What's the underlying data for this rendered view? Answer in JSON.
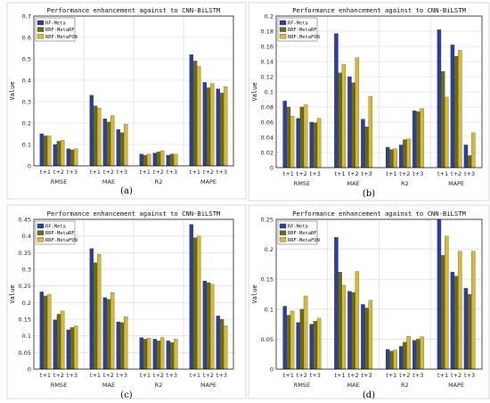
{
  "colors": {
    "RF-Meta": "#2b3fa0",
    "RRF-MetaRF": "#6b6b14",
    "RRF-MetaFON": "#d7b934",
    "grid": "#d6d6d6",
    "axis": "#000000"
  },
  "chart_data": [
    {
      "panel_label": "(a)",
      "type": "bar",
      "title": "Performance enhancement against to CNN-BiLSTM",
      "ylabel": "Value",
      "ylim": [
        0,
        0.7
      ],
      "yticks": [
        "0",
        "0.1",
        "0.2",
        "0.3",
        "0.4",
        "0.5",
        "0.6",
        "0.7"
      ],
      "legend": [
        "RF-Meta",
        "RRF-MetaRF",
        "RRF-MetaFON"
      ],
      "legend_position": "top-left",
      "groups": [
        "RMSE",
        "MAE",
        "R2",
        "MAPE"
      ],
      "subgroups": [
        "t+1",
        "t+2",
        "t+3"
      ],
      "series": [
        {
          "name": "RF-Meta",
          "values": [
            [
              0.15,
              0.1,
              0.08
            ],
            [
              0.33,
              0.22,
              0.17
            ],
            [
              0.055,
              0.06,
              0.05
            ],
            [
              0.52,
              0.39,
              0.36
            ]
          ]
        },
        {
          "name": "RRF-MetaRF",
          "values": [
            [
              0.14,
              0.115,
              0.075
            ],
            [
              0.28,
              0.205,
              0.155
            ],
            [
              0.05,
              0.065,
              0.055
            ],
            [
              0.49,
              0.365,
              0.34
            ]
          ]
        },
        {
          "name": "RRF-MetaFON",
          "values": [
            [
              0.14,
              0.12,
              0.08
            ],
            [
              0.27,
              0.235,
              0.195
            ],
            [
              0.055,
              0.07,
              0.055
            ],
            [
              0.465,
              0.385,
              0.37
            ]
          ]
        }
      ]
    },
    {
      "panel_label": "(b)",
      "type": "bar",
      "title": "Performance enhancement against to CNN-BiLSTM",
      "ylabel": "Value",
      "ylim": [
        0,
        0.2
      ],
      "yticks": [
        "0",
        "0.02",
        "0.04",
        "0.06",
        "0.08",
        "0.1",
        "0.12",
        "0.14",
        "0.16",
        "0.18",
        "0.2"
      ],
      "legend": [
        "RF-Meta",
        "RRF-MetaRF",
        "RRF-MetaFON"
      ],
      "legend_position": "top-left",
      "groups": [
        "RMSE",
        "MAE",
        "R2",
        "MAPE"
      ],
      "subgroups": [
        "t+1",
        "t+2",
        "t+3"
      ],
      "series": [
        {
          "name": "RF-Meta",
          "values": [
            [
              0.088,
              0.065,
              0.06
            ],
            [
              0.177,
              0.12,
              0.064
            ],
            [
              0.027,
              0.03,
              0.075
            ],
            [
              0.182,
              0.162,
              0.03
            ]
          ]
        },
        {
          "name": "RRF-MetaRF",
          "values": [
            [
              0.08,
              0.08,
              0.059
            ],
            [
              0.125,
              0.112,
              0.054
            ],
            [
              0.024,
              0.037,
              0.074
            ],
            [
              0.127,
              0.147,
              0.016
            ]
          ]
        },
        {
          "name": "RRF-MetaFON",
          "values": [
            [
              0.068,
              0.083,
              0.065
            ],
            [
              0.136,
              0.145,
              0.094
            ],
            [
              0.025,
              0.038,
              0.078
            ],
            [
              0.093,
              0.155,
              0.046
            ]
          ]
        }
      ]
    },
    {
      "panel_label": "(c)",
      "type": "bar",
      "title": "Performance enhancement against to CNN-BiLSTM",
      "ylabel": "Value",
      "ylim": [
        0,
        0.45
      ],
      "yticks": [
        "0",
        "0.05",
        "0.1",
        "0.15",
        "0.2",
        "0.25",
        "0.3",
        "0.35",
        "0.4",
        "0.45"
      ],
      "legend": [
        "RF-Meta",
        "RRF-MetaRF",
        "RRF-MetaFON"
      ],
      "legend_position": "top-left",
      "groups": [
        "RMSE",
        "MAE",
        "R2",
        "MAPE"
      ],
      "subgroups": [
        "t+1",
        "t+2",
        "t+3"
      ],
      "series": [
        {
          "name": "RF-Meta",
          "values": [
            [
              0.232,
              0.148,
              0.118
            ],
            [
              0.362,
              0.215,
              0.142
            ],
            [
              0.095,
              0.09,
              0.085
            ],
            [
              0.435,
              0.265,
              0.16
            ]
          ]
        },
        {
          "name": "RRF-MetaRF",
          "values": [
            [
              0.22,
              0.165,
              0.125
            ],
            [
              0.32,
              0.21,
              0.14
            ],
            [
              0.09,
              0.085,
              0.08
            ],
            [
              0.395,
              0.26,
              0.15
            ]
          ]
        },
        {
          "name": "RRF-MetaFON",
          "values": [
            [
              0.225,
              0.175,
              0.13
            ],
            [
              0.345,
              0.23,
              0.158
            ],
            [
              0.093,
              0.095,
              0.09
            ],
            [
              0.4,
              0.255,
              0.13
            ]
          ]
        }
      ]
    },
    {
      "panel_label": "(d)",
      "type": "bar",
      "title": "Performance enhancement against to CNN-BiLSTM",
      "ylabel": "Value",
      "ylim": [
        0,
        0.25
      ],
      "yticks": [
        "0",
        "0.05",
        "0.1",
        "0.15",
        "0.2",
        "0.25"
      ],
      "legend": [
        "RF-Meta",
        "RRF-MetaRF",
        "RRF-MetaFON"
      ],
      "legend_position": "top-left",
      "groups": [
        "RMSE",
        "MAE",
        "R2",
        "MAPE"
      ],
      "subgroups": [
        "t+1",
        "t+2",
        "t+3"
      ],
      "series": [
        {
          "name": "RF-Meta",
          "values": [
            [
              0.105,
              0.078,
              0.075
            ],
            [
              0.22,
              0.13,
              0.108
            ],
            [
              0.033,
              0.038,
              0.048
            ],
            [
              0.25,
              0.162,
              0.135
            ]
          ]
        },
        {
          "name": "RRF-MetaRF",
          "values": [
            [
              0.09,
              0.1,
              0.08
            ],
            [
              0.162,
              0.128,
              0.102
            ],
            [
              0.03,
              0.045,
              0.05
            ],
            [
              0.19,
              0.155,
              0.125
            ]
          ]
        },
        {
          "name": "RRF-MetaFON",
          "values": [
            [
              0.097,
              0.122,
              0.085
            ],
            [
              0.14,
              0.163,
              0.115
            ],
            [
              0.032,
              0.055,
              0.054
            ],
            [
              0.222,
              0.197,
              0.197
            ]
          ]
        }
      ]
    }
  ]
}
